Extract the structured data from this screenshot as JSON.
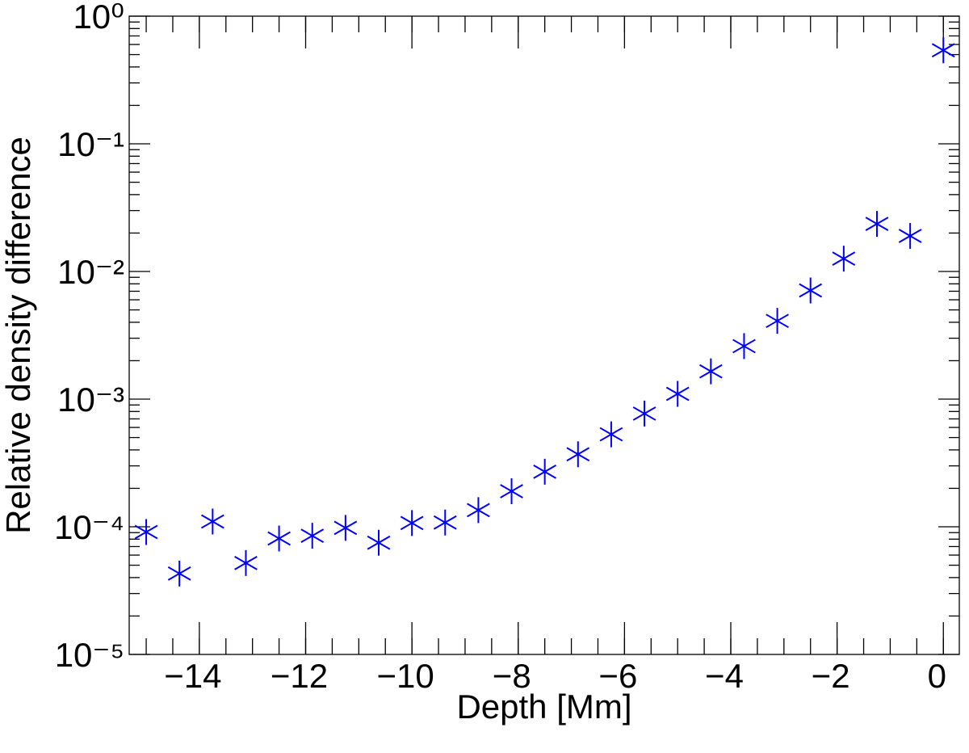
{
  "chart_data": {
    "type": "scatter",
    "xlabel": "Depth [Mm]",
    "ylabel": "Relative density difference",
    "x": [
      -15,
      -14.375,
      -13.75,
      -13.125,
      -12.5,
      -11.875,
      -11.25,
      -10.625,
      -10,
      -9.375,
      -8.75,
      -8.125,
      -7.5,
      -6.875,
      -6.25,
      -5.625,
      -5,
      -4.375,
      -3.75,
      -3.125,
      -2.5,
      -1.875,
      -1.25,
      -0.625,
      0
    ],
    "values": [
      9.1e-05,
      4.3e-05,
      0.00011,
      5.2e-05,
      8.1e-05,
      8.5e-05,
      9.8e-05,
      7.5e-05,
      0.000107,
      0.000108,
      0.000135,
      0.00019,
      0.00027,
      0.00037,
      0.00053,
      0.00077,
      0.0011,
      0.00165,
      0.0026,
      0.0041,
      0.0071,
      0.0126,
      0.0236,
      0.019,
      0.54
    ],
    "color": "#0000ff",
    "marker": "asterisk",
    "xlim": [
      -15.32,
      0.3
    ],
    "xticks": [
      {
        "value": -14,
        "label": "−14"
      },
      {
        "value": -12,
        "label": "−12"
      },
      {
        "value": -10,
        "label": "−10"
      },
      {
        "value": -8,
        "label": "−8"
      },
      {
        "value": -6,
        "label": "−6"
      },
      {
        "value": -4,
        "label": "−4"
      },
      {
        "value": -2,
        "label": "−2"
      },
      0
    ],
    "ylim": [
      1e-05,
      1
    ],
    "yscale": "log",
    "yticks": [
      {
        "value": 1e-05,
        "label": "10⁻⁵"
      },
      {
        "value": 0.0001,
        "label": "10⁻⁴"
      },
      {
        "value": 0.001,
        "label": "10⁻³"
      },
      {
        "value": 0.01,
        "label": "10⁻²"
      },
      {
        "value": 0.1,
        "label": "10⁻¹"
      },
      {
        "value": 1,
        "label": "10⁰"
      }
    ],
    "minor_ticks": true
  }
}
